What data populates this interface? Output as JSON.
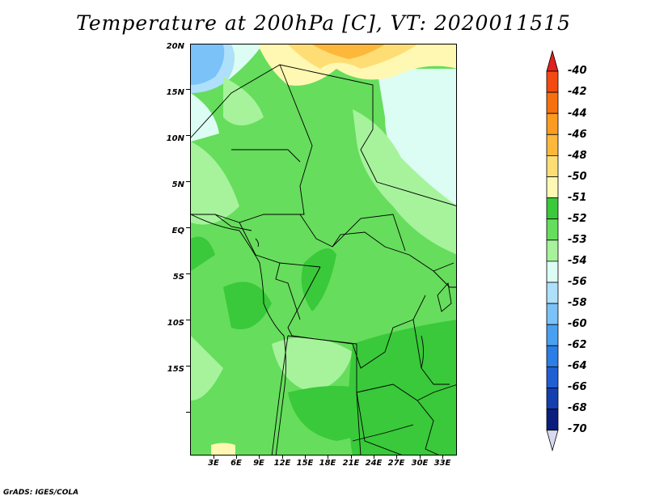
{
  "title": "Temperature at 200hPa [C], VT: 2020011515",
  "footer": "GrADS: IGES/COLA",
  "map": {
    "lat_labels": [
      "20N",
      "15N",
      "10N",
      "5N",
      "EQ",
      "5S",
      "10S",
      "15S"
    ],
    "lon_labels": [
      "3E",
      "6E",
      "9E",
      "12E",
      "15E",
      "18E",
      "21E",
      "24E",
      "27E",
      "30E",
      "33E"
    ]
  },
  "colorbar": {
    "labels": [
      "-40",
      "-42",
      "-44",
      "-46",
      "-48",
      "-50",
      "-51",
      "-52",
      "-53",
      "-54",
      "-56",
      "-58",
      "-60",
      "-62",
      "-64",
      "-66",
      "-68",
      "-70"
    ],
    "colors": {
      "top_arrow": "#e0201a",
      "c40": "#f24a10",
      "c42": "#f7700f",
      "c44": "#fb9c20",
      "c46": "#fdb83c",
      "c48": "#fede74",
      "c50": "#fff8b2",
      "c51": "#39c93a",
      "c52": "#66dd5c",
      "c53": "#a6f39c",
      "c54": "#dcfdf4",
      "c56": "#aee0fb",
      "c58": "#7ac2f7",
      "c60": "#4aa0f0",
      "c62": "#2a7ee6",
      "c64": "#1f5fd4",
      "c66": "#143fb0",
      "c68": "#0b1e7e",
      "bottom_arrow": "#d8d8ee"
    }
  }
}
